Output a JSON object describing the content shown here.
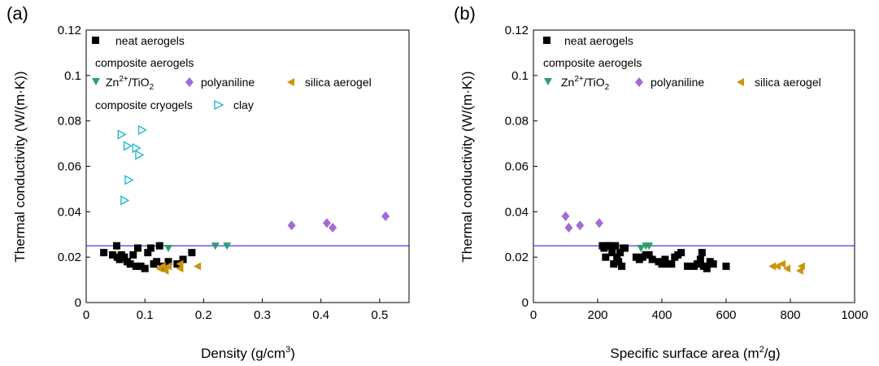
{
  "chart_data": [
    {
      "panel": "(a)",
      "type": "scatter",
      "xlabel": "Density (g/cm3)",
      "xlabel_base": "Density (g/cm",
      "xlabel_sup": "3",
      "xlabel_tail": ")",
      "ylabel": "Thermal conductivity (W/(m·K))",
      "xlim": [
        0,
        0.55
      ],
      "ylim": [
        0,
        0.12
      ],
      "xticks": [
        0,
        0.1,
        0.2,
        0.3,
        0.4,
        0.5
      ],
      "xtick_labels": [
        "0",
        "0.1",
        "0.2",
        "0.3",
        "0.4",
        "0.5"
      ],
      "yticks": [
        0,
        0.02,
        0.04,
        0.06,
        0.08,
        0.1,
        0.12
      ],
      "ytick_labels": [
        "0",
        "0.02",
        "0.04",
        "0.06",
        "0.08",
        "0.1",
        "0.12"
      ],
      "reference_line": 0.025,
      "legend": {
        "placement": "top-left",
        "group_composite": "composite aerogels",
        "group_cryogels": "composite cryogels"
      },
      "series": [
        {
          "name": "neat aerogels",
          "marker": "square",
          "color": "#000000",
          "points": [
            [
              0.03,
              0.022
            ],
            [
              0.045,
              0.021
            ],
            [
              0.052,
              0.025
            ],
            [
              0.053,
              0.02
            ],
            [
              0.057,
              0.019
            ],
            [
              0.06,
              0.021
            ],
            [
              0.065,
              0.02
            ],
            [
              0.07,
              0.018
            ],
            [
              0.075,
              0.017
            ],
            [
              0.08,
              0.021
            ],
            [
              0.085,
              0.016
            ],
            [
              0.088,
              0.024
            ],
            [
              0.093,
              0.016
            ],
            [
              0.1,
              0.015
            ],
            [
              0.105,
              0.022
            ],
            [
              0.11,
              0.024
            ],
            [
              0.115,
              0.017
            ],
            [
              0.12,
              0.018
            ],
            [
              0.125,
              0.025
            ],
            [
              0.13,
              0.016
            ],
            [
              0.14,
              0.018
            ],
            [
              0.155,
              0.017
            ],
            [
              0.165,
              0.019
            ],
            [
              0.18,
              0.022
            ]
          ]
        },
        {
          "name": "Zn2+/TiO2",
          "name_parts": [
            "Zn",
            "2+",
            "/TiO",
            "2"
          ],
          "marker": "triangle-down",
          "color": "#2b9f6e",
          "points": [
            [
              0.14,
              0.024
            ],
            [
              0.22,
              0.025
            ],
            [
              0.24,
              0.025
            ]
          ]
        },
        {
          "name": "polyaniline",
          "marker": "diamond",
          "color": "#a36bd6",
          "points": [
            [
              0.35,
              0.034
            ],
            [
              0.41,
              0.035
            ],
            [
              0.42,
              0.033
            ],
            [
              0.51,
              0.038
            ]
          ]
        },
        {
          "name": "silica aerogel",
          "marker": "triangle-left",
          "color": "#c8960c",
          "points": [
            [
              0.125,
              0.015
            ],
            [
              0.13,
              0.016
            ],
            [
              0.135,
              0.014
            ],
            [
              0.14,
              0.016
            ],
            [
              0.16,
              0.015
            ],
            [
              0.16,
              0.017
            ],
            [
              0.19,
              0.016
            ]
          ]
        },
        {
          "name": "clay",
          "marker": "triangle-right-open",
          "color": "#2ab8c8",
          "points": [
            [
              0.06,
              0.074
            ],
            [
              0.065,
              0.045
            ],
            [
              0.07,
              0.069
            ],
            [
              0.072,
              0.054
            ],
            [
              0.085,
              0.068
            ],
            [
              0.09,
              0.065
            ],
            [
              0.095,
              0.076
            ]
          ]
        }
      ]
    },
    {
      "panel": "(b)",
      "type": "scatter",
      "xlabel": "Specific surface area (m2/g)",
      "xlabel_base": "Specific surface area (m",
      "xlabel_sup": "2",
      "xlabel_tail": "/g)",
      "ylabel": "Thermal conductivity (W/(m·K))",
      "xlim": [
        0,
        1000
      ],
      "ylim": [
        0,
        0.12
      ],
      "xticks": [
        0,
        200,
        400,
        600,
        800,
        1000
      ],
      "xtick_labels": [
        "0",
        "200",
        "400",
        "600",
        "800",
        "1000"
      ],
      "yticks": [
        0,
        0.02,
        0.04,
        0.06,
        0.08,
        0.1,
        0.12
      ],
      "ytick_labels": [
        "0",
        "0.02",
        "0.04",
        "0.06",
        "0.08",
        "0.1",
        "0.12"
      ],
      "reference_line": 0.025,
      "legend": {
        "placement": "top-left",
        "group_composite": "composite aerogels"
      },
      "series": [
        {
          "name": "neat aerogels",
          "marker": "square",
          "color": "#000000",
          "points": [
            [
              215,
              0.025
            ],
            [
              220,
              0.024
            ],
            [
              225,
              0.02
            ],
            [
              230,
              0.025
            ],
            [
              240,
              0.025
            ],
            [
              245,
              0.022
            ],
            [
              250,
              0.017
            ],
            [
              255,
              0.025
            ],
            [
              260,
              0.02
            ],
            [
              265,
              0.018
            ],
            [
              270,
              0.022
            ],
            [
              275,
              0.016
            ],
            [
              280,
              0.024
            ],
            [
              285,
              0.024
            ],
            [
              320,
              0.02
            ],
            [
              330,
              0.019
            ],
            [
              340,
              0.02
            ],
            [
              350,
              0.021
            ],
            [
              360,
              0.021
            ],
            [
              370,
              0.019
            ],
            [
              390,
              0.018
            ],
            [
              400,
              0.017
            ],
            [
              410,
              0.019
            ],
            [
              420,
              0.017
            ],
            [
              430,
              0.017
            ],
            [
              440,
              0.02
            ],
            [
              450,
              0.021
            ],
            [
              460,
              0.022
            ],
            [
              480,
              0.016
            ],
            [
              500,
              0.016
            ],
            [
              510,
              0.017
            ],
            [
              520,
              0.019
            ],
            [
              525,
              0.022
            ],
            [
              530,
              0.016
            ],
            [
              540,
              0.015
            ],
            [
              550,
              0.018
            ],
            [
              560,
              0.017
            ],
            [
              600,
              0.016
            ]
          ]
        },
        {
          "name": "Zn2+/TiO2",
          "name_parts": [
            "Zn",
            "2+",
            "/TiO",
            "2"
          ],
          "marker": "triangle-down",
          "color": "#2b9f6e",
          "points": [
            [
              335,
              0.024
            ],
            [
              350,
              0.025
            ],
            [
              360,
              0.025
            ]
          ]
        },
        {
          "name": "polyaniline",
          "marker": "diamond",
          "color": "#a36bd6",
          "points": [
            [
              100,
              0.038
            ],
            [
              110,
              0.033
            ],
            [
              145,
              0.034
            ],
            [
              205,
              0.035
            ]
          ]
        },
        {
          "name": "silica aerogel",
          "marker": "triangle-left",
          "color": "#c8960c",
          "points": [
            [
              745,
              0.016
            ],
            [
              760,
              0.016
            ],
            [
              775,
              0.017
            ],
            [
              790,
              0.015
            ],
            [
              830,
              0.014
            ],
            [
              835,
              0.016
            ]
          ]
        }
      ]
    }
  ]
}
